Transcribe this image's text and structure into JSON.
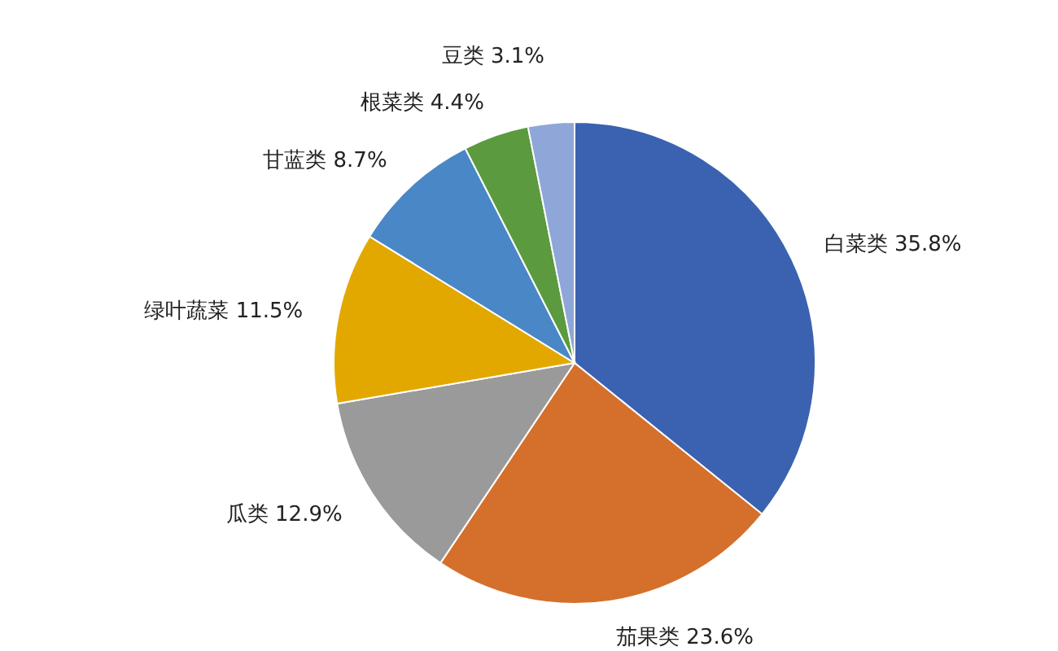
{
  "chart_data": {
    "type": "pie",
    "categories": [
      "白菜类",
      "茄果类",
      "瓜类",
      "绿叶蔬菜",
      "甘蓝类",
      "根菜类",
      "豆类"
    ],
    "values": [
      35.8,
      23.6,
      12.9,
      11.5,
      8.7,
      4.4,
      3.1
    ],
    "value_labels": [
      "35.8%",
      "23.6%",
      "12.9%",
      "11.5%",
      "8.7%",
      "4.4%",
      "3.1%"
    ],
    "colors": [
      "#3a62b0",
      "#d4702b",
      "#9a9a9a",
      "#e3a800",
      "#4a87c6",
      "#5b9a3f",
      "#8ea6d8"
    ],
    "legend": false
  }
}
